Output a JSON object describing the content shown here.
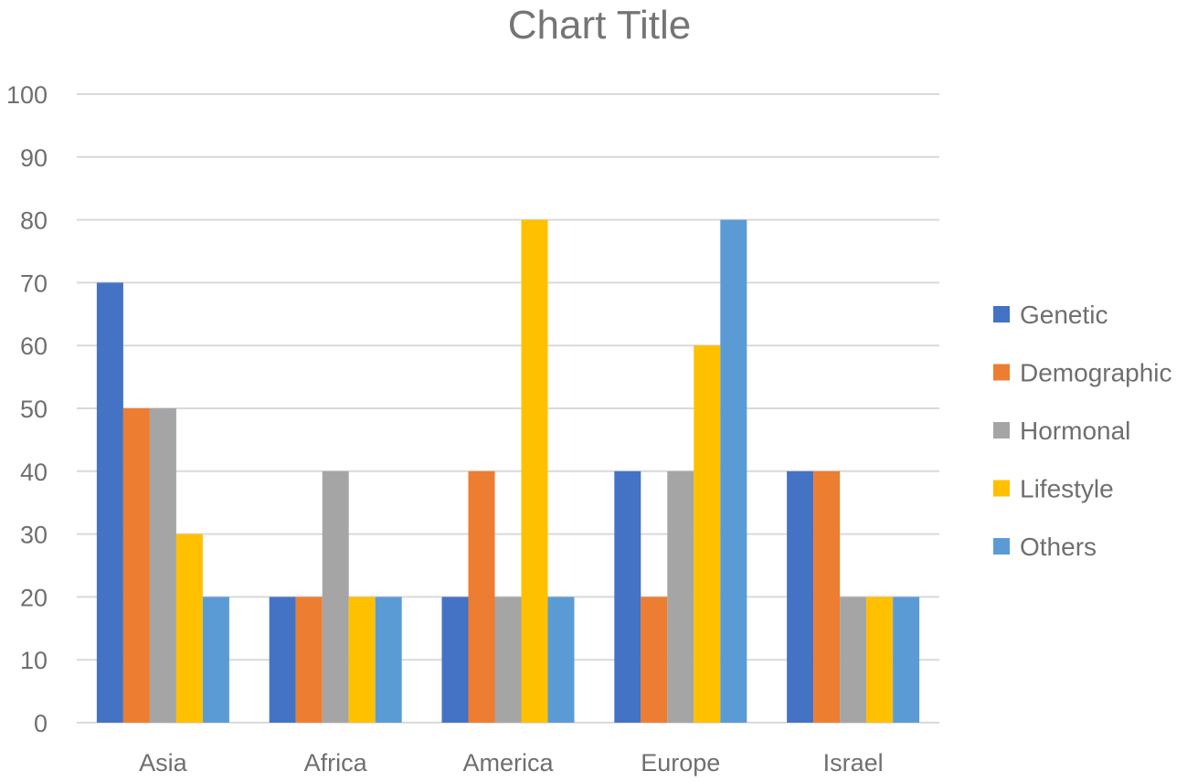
{
  "chart_data": {
    "type": "bar",
    "title": "Chart Title",
    "xlabel": "",
    "ylabel": "",
    "ylim": [
      0,
      100
    ],
    "yticks": [
      0,
      10,
      20,
      30,
      40,
      50,
      60,
      70,
      80,
      90,
      100
    ],
    "categories": [
      "Asia",
      "Africa",
      "America",
      "Europe",
      "Israel"
    ],
    "series": [
      {
        "name": "Genetic",
        "color": "#4472c4",
        "values": [
          70,
          20,
          20,
          40,
          40
        ]
      },
      {
        "name": "Demographic",
        "color": "#ed7d31",
        "values": [
          50,
          20,
          40,
          20,
          40
        ]
      },
      {
        "name": "Hormonal",
        "color": "#a5a5a5",
        "values": [
          50,
          40,
          20,
          40,
          20
        ]
      },
      {
        "name": "Lifestyle",
        "color": "#ffc000",
        "values": [
          30,
          20,
          80,
          60,
          20
        ]
      },
      {
        "name": "Others",
        "color": "#5b9bd5",
        "values": [
          20,
          20,
          20,
          80,
          20
        ]
      }
    ],
    "grid": true,
    "legend": "right"
  }
}
